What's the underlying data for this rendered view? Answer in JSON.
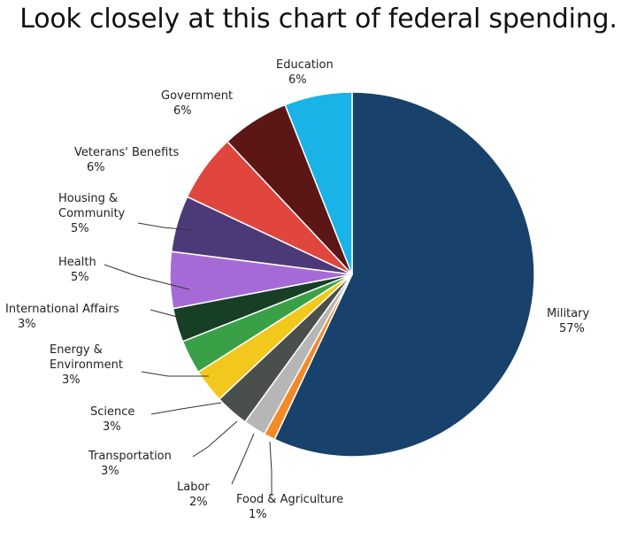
{
  "headline": "Look closely at this chart of federal spending.",
  "chart_data": {
    "type": "pie",
    "title": "",
    "start_angle_deg": 0,
    "direction": "clockwise",
    "slices": [
      {
        "name": "Military",
        "percent_label": "57%",
        "value": 57,
        "color": "#18416b"
      },
      {
        "name": "Food & Agriculture",
        "percent_label": "1%",
        "value": 1,
        "color": "#f28a28"
      },
      {
        "name": "Labor",
        "percent_label": "2%",
        "value": 2,
        "color": "#b6b6b6"
      },
      {
        "name": "Transportation",
        "percent_label": "3%",
        "value": 3,
        "color": "#4a4f4b"
      },
      {
        "name": "Science",
        "percent_label": "3%",
        "value": 3,
        "color": "#f3c81c"
      },
      {
        "name": "Energy & Environment",
        "percent_label": "3%",
        "value": 3,
        "color": "#3aa048"
      },
      {
        "name": "International Affairs",
        "percent_label": "3%",
        "value": 3,
        "color": "#173f26"
      },
      {
        "name": "Health",
        "percent_label": "5%",
        "value": 5,
        "color": "#a66ad6"
      },
      {
        "name": "Housing & Community",
        "percent_label": "5%",
        "value": 5,
        "color": "#4c3a78"
      },
      {
        "name": "Veterans' Benefits",
        "percent_label": "6%",
        "value": 6,
        "color": "#e0463e"
      },
      {
        "name": "Government",
        "percent_label": "6%",
        "value": 6,
        "color": "#5c1616"
      },
      {
        "name": "Education",
        "percent_label": "6%",
        "value": 6,
        "color": "#19b3e8"
      }
    ],
    "labels": [
      {
        "lines": [
          "Military",
          "57%"
        ]
      },
      {
        "lines": [
          "Food & Agriculture",
          "1%"
        ]
      },
      {
        "lines": [
          "Labor",
          "2%"
        ]
      },
      {
        "lines": [
          "Transportation",
          "3%"
        ]
      },
      {
        "lines": [
          "Science",
          "3%"
        ]
      },
      {
        "lines": [
          "Energy &",
          "Environment",
          "3%"
        ]
      },
      {
        "lines": [
          "International Affairs",
          "3%"
        ]
      },
      {
        "lines": [
          "Health",
          "5%"
        ]
      },
      {
        "lines": [
          "Housing &",
          "Community",
          "5%"
        ]
      },
      {
        "lines": [
          "Veterans' Benefits",
          "6%"
        ]
      },
      {
        "lines": [
          "Government",
          "6%"
        ]
      },
      {
        "lines": [
          "Education",
          "6%"
        ]
      }
    ]
  }
}
